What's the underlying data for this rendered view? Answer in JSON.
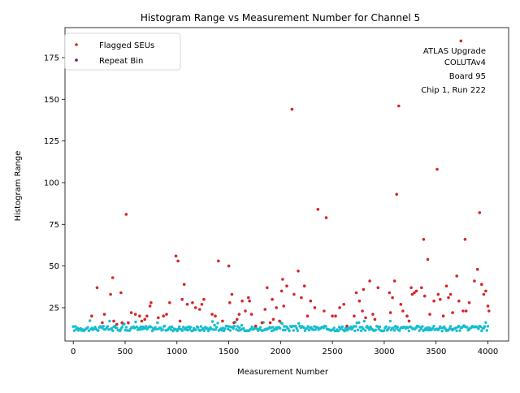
{
  "chart_data": {
    "type": "scatter",
    "title": "Histogram Range vs Measurement Number for Channel 5",
    "xlabel": "Measurement Number",
    "ylabel": "Histogram Range",
    "xlim": [
      -80,
      4200
    ],
    "ylim": [
      5,
      193
    ],
    "xticks": [
      0,
      500,
      1000,
      1500,
      2000,
      2500,
      3000,
      3500,
      4000
    ],
    "yticks": [
      25,
      50,
      75,
      100,
      125,
      150,
      175
    ],
    "grid": false,
    "legend_position": "top-left",
    "annotation": [
      "ATLAS Upgrade",
      "COLUTAv4",
      "Board 95",
      "Chip 1, Run 222"
    ],
    "colors": {
      "baseline": "#17becf",
      "flagged": "#d62728",
      "repeat": "#800080"
    },
    "series": [
      {
        "name": "",
        "color": "#17becf",
        "x_start": 0,
        "x_end": 4000,
        "count": 400,
        "typical_y": [
          11,
          14
        ]
      },
      {
        "name": "Flagged SEUs",
        "color": "#d62728",
        "points": [
          [
            178,
            20
          ],
          [
            230,
            37
          ],
          [
            280,
            16
          ],
          [
            300,
            21
          ],
          [
            360,
            33
          ],
          [
            380,
            43
          ],
          [
            390,
            17
          ],
          [
            420,
            15
          ],
          [
            460,
            34
          ],
          [
            470,
            16
          ],
          [
            510,
            81
          ],
          [
            530,
            16
          ],
          [
            560,
            22
          ],
          [
            600,
            21
          ],
          [
            640,
            20
          ],
          [
            660,
            17
          ],
          [
            690,
            18
          ],
          [
            710,
            20
          ],
          [
            740,
            26
          ],
          [
            750,
            28
          ],
          [
            820,
            19
          ],
          [
            870,
            20
          ],
          [
            900,
            21
          ],
          [
            930,
            28
          ],
          [
            990,
            56
          ],
          [
            1010,
            53
          ],
          [
            1030,
            17
          ],
          [
            1050,
            30
          ],
          [
            1070,
            39
          ],
          [
            1100,
            27
          ],
          [
            1150,
            28
          ],
          [
            1180,
            25
          ],
          [
            1220,
            24
          ],
          [
            1240,
            27
          ],
          [
            1260,
            30
          ],
          [
            1340,
            21
          ],
          [
            1370,
            20
          ],
          [
            1400,
            53
          ],
          [
            1440,
            17
          ],
          [
            1500,
            50
          ],
          [
            1510,
            28
          ],
          [
            1530,
            33
          ],
          [
            1550,
            16
          ],
          [
            1580,
            18
          ],
          [
            1600,
            21
          ],
          [
            1630,
            29
          ],
          [
            1660,
            23
          ],
          [
            1690,
            31
          ],
          [
            1700,
            29
          ],
          [
            1720,
            21
          ],
          [
            1760,
            14
          ],
          [
            1820,
            16
          ],
          [
            1850,
            24
          ],
          [
            1870,
            37
          ],
          [
            1900,
            16
          ],
          [
            1920,
            30
          ],
          [
            1930,
            18
          ],
          [
            1960,
            25
          ],
          [
            1990,
            17
          ],
          [
            2010,
            35
          ],
          [
            2020,
            42
          ],
          [
            2030,
            26
          ],
          [
            2060,
            38
          ],
          [
            2110,
            144
          ],
          [
            2130,
            33
          ],
          [
            2170,
            47
          ],
          [
            2200,
            31
          ],
          [
            2230,
            38
          ],
          [
            2260,
            20
          ],
          [
            2290,
            29
          ],
          [
            2330,
            25
          ],
          [
            2360,
            84
          ],
          [
            2420,
            23
          ],
          [
            2440,
            79
          ],
          [
            2500,
            20
          ],
          [
            2530,
            20
          ],
          [
            2570,
            25
          ],
          [
            2610,
            27
          ],
          [
            2640,
            14
          ],
          [
            2710,
            20
          ],
          [
            2730,
            34
          ],
          [
            2760,
            29
          ],
          [
            2790,
            23
          ],
          [
            2800,
            36
          ],
          [
            2820,
            19
          ],
          [
            2860,
            41
          ],
          [
            2890,
            21
          ],
          [
            2910,
            18
          ],
          [
            2940,
            37
          ],
          [
            3050,
            34
          ],
          [
            3060,
            22
          ],
          [
            3080,
            31
          ],
          [
            3100,
            41
          ],
          [
            3120,
            93
          ],
          [
            3140,
            146
          ],
          [
            3160,
            27
          ],
          [
            3180,
            23
          ],
          [
            3220,
            20
          ],
          [
            3240,
            17
          ],
          [
            3260,
            37
          ],
          [
            3270,
            33
          ],
          [
            3290,
            34
          ],
          [
            3310,
            35
          ],
          [
            3360,
            37
          ],
          [
            3380,
            66
          ],
          [
            3390,
            32
          ],
          [
            3420,
            54
          ],
          [
            3440,
            21
          ],
          [
            3480,
            29
          ],
          [
            3510,
            108
          ],
          [
            3520,
            33
          ],
          [
            3540,
            30
          ],
          [
            3570,
            20
          ],
          [
            3600,
            38
          ],
          [
            3620,
            31
          ],
          [
            3640,
            33
          ],
          [
            3660,
            22
          ],
          [
            3700,
            44
          ],
          [
            3720,
            29
          ],
          [
            3740,
            185
          ],
          [
            3760,
            23
          ],
          [
            3780,
            66
          ],
          [
            3790,
            23
          ],
          [
            3820,
            28
          ],
          [
            3870,
            41
          ],
          [
            3900,
            48
          ],
          [
            3920,
            82
          ],
          [
            3940,
            39
          ],
          [
            3960,
            33
          ],
          [
            3980,
            35
          ],
          [
            4000,
            26
          ],
          [
            4010,
            23
          ]
        ]
      },
      {
        "name": "Repeat Bin",
        "color": "#800080",
        "points": []
      }
    ]
  }
}
